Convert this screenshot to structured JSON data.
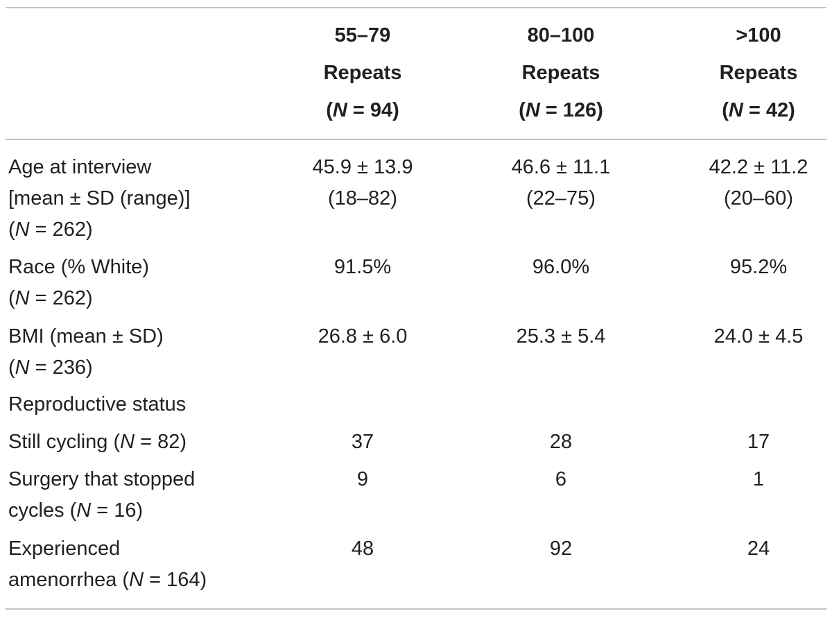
{
  "table": {
    "headers": [
      {
        "range": "55–79",
        "word": "Repeats",
        "n_open": "(",
        "n_italic": "N",
        "n_rest": " = 94)"
      },
      {
        "range": "80–100",
        "word": "Repeats",
        "n_open": "(",
        "n_italic": "N",
        "n_rest": " = 126)"
      },
      {
        "range": ">100",
        "word": "Repeats",
        "n_open": "(",
        "n_italic": "N",
        "n_rest": " = 42)"
      }
    ],
    "rows": {
      "age": {
        "label_line1": "Age at interview",
        "label_line2": "[mean ± SD (range)]",
        "label_n_open": "(",
        "label_n_italic": "N",
        "label_n_rest": " = 262)",
        "values": [
          {
            "line1": "45.9 ± 13.9",
            "line2": "(18–82)"
          },
          {
            "line1": "46.6 ± 11.1",
            "line2": "(22–75)"
          },
          {
            "line1": "42.2 ± 11.2",
            "line2": "(20–60)"
          }
        ]
      },
      "race": {
        "label_line1": "Race (% White)",
        "label_n_open": "(",
        "label_n_italic": "N",
        "label_n_rest": " = 262)",
        "values": [
          "91.5%",
          "96.0%",
          "95.2%"
        ]
      },
      "bmi": {
        "label_line1": "BMI (mean ± SD)",
        "label_n_open": "(",
        "label_n_italic": "N",
        "label_n_rest": " = 236)",
        "values": [
          "26.8 ± 6.0",
          "25.3 ± 5.4",
          "24.0 ± 4.5"
        ]
      },
      "repro": {
        "label_line1": "Reproductive status"
      },
      "cycling": {
        "label_pre": "Still cycling (",
        "label_n_italic": "N",
        "label_n_rest": " = 82)",
        "values": [
          "37",
          "28",
          "17"
        ]
      },
      "surgery": {
        "label_line1": "Surgery that stopped",
        "label_pre": "cycles (",
        "label_n_italic": "N",
        "label_n_rest": " = 16)",
        "values": [
          "9",
          "6",
          "1"
        ]
      },
      "amenorrhea": {
        "label_line1": "Experienced",
        "label_pre": "amenorrhea (",
        "label_n_italic": "N",
        "label_n_rest": " = 164)",
        "values": [
          "48",
          "92",
          "24"
        ]
      }
    }
  }
}
